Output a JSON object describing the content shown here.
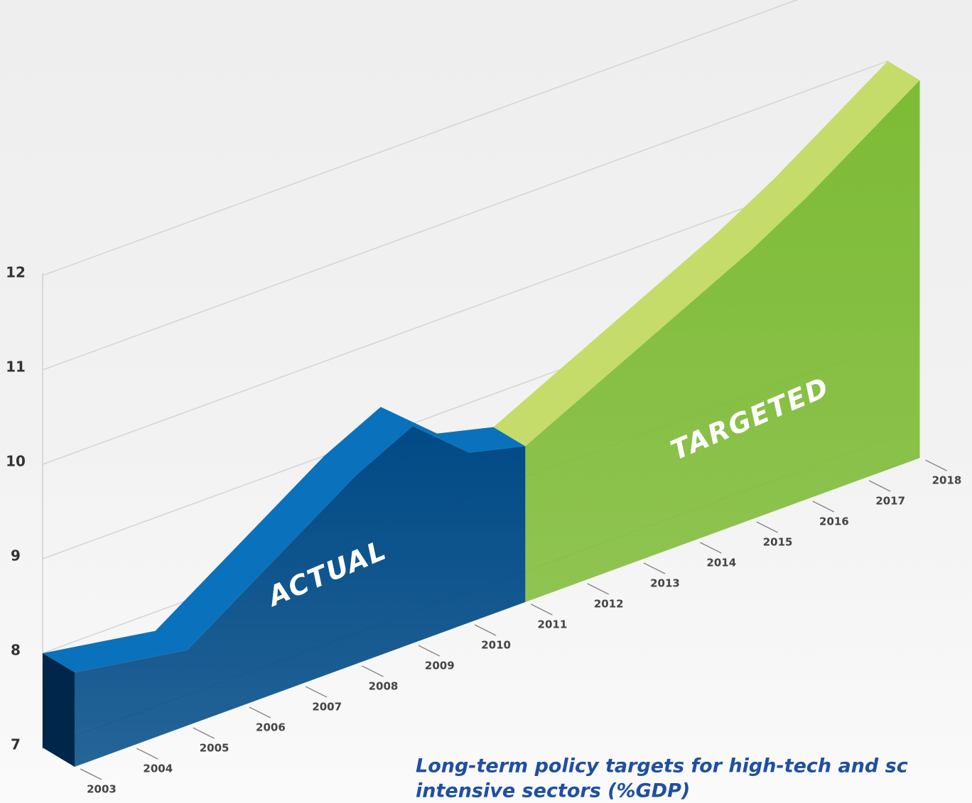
{
  "chart_data": {
    "type": "area3d",
    "caption": [
      "Long-term policy targets for high-tech and sc",
      "intensive sectors (%GDP)"
    ],
    "categories": [
      "2003",
      "2004",
      "2005",
      "2006",
      "2007",
      "2008",
      "2009",
      "2010",
      "2011",
      "2012",
      "2013",
      "2014",
      "2015",
      "2016",
      "2017",
      "2018"
    ],
    "series": [
      {
        "name": "ACTUAL",
        "color": "#004a86",
        "top_color": "#0a72bc",
        "values": [
          8.0,
          7.9,
          7.8,
          8.2,
          8.6,
          9.0,
          9.3,
          8.8,
          8.65,
          null,
          null,
          null,
          null,
          null,
          null,
          null
        ]
      },
      {
        "name": "TARGETED",
        "color": "#7dbb35",
        "top_color": "#c5dc6a",
        "values": [
          null,
          null,
          null,
          null,
          null,
          null,
          null,
          null,
          8.65,
          8.95,
          9.25,
          9.55,
          9.85,
          10.2,
          10.6,
          11.0
        ]
      }
    ],
    "ylim": [
      7,
      12
    ],
    "yticks": [
      7,
      8,
      9,
      10,
      11,
      12
    ],
    "grid": true
  }
}
